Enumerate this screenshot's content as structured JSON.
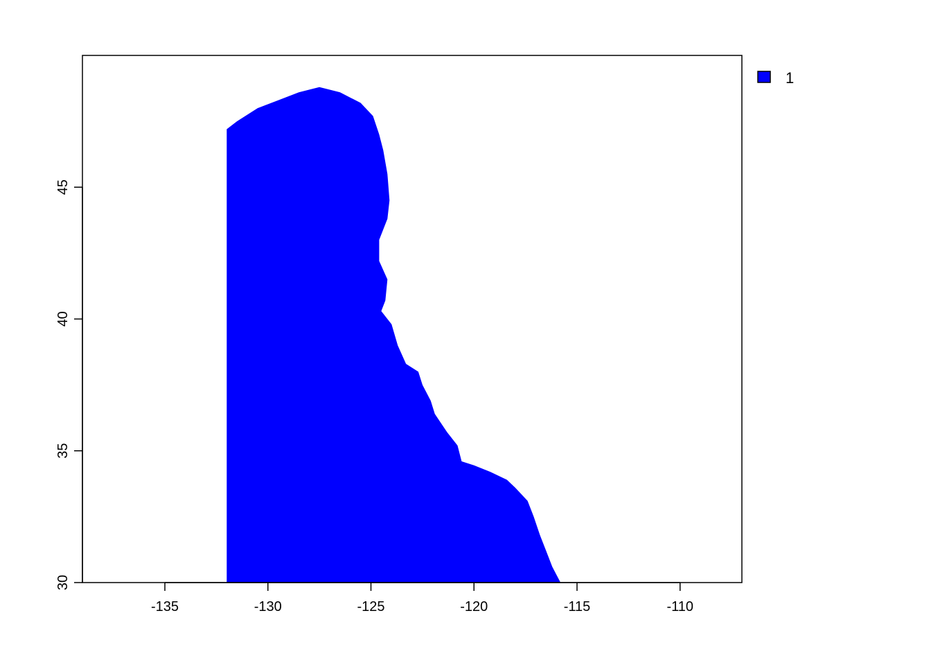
{
  "map": {
    "type": "raster",
    "x_range": [
      -139,
      -107
    ],
    "y_range": [
      30,
      50
    ],
    "fill_color": "#0000ff",
    "background": "#ffffff",
    "x_ticks": [
      -135,
      -130,
      -125,
      -120,
      -115,
      -110
    ],
    "x_tick_labels": [
      "-135",
      "-130",
      "-125",
      "-120",
      "-115",
      "-110"
    ],
    "y_ticks": [
      30,
      35,
      40,
      45
    ],
    "y_tick_labels": [
      "30",
      "35",
      "40",
      "45"
    ],
    "legend": [
      {
        "label": "1",
        "color": "#0000ff"
      }
    ],
    "raster_west_edge_lon": -132,
    "coastline": [
      [
        -132.0,
        47.2
      ],
      [
        -131.5,
        47.5
      ],
      [
        -130.5,
        48.0
      ],
      [
        -129.5,
        48.3
      ],
      [
        -128.5,
        48.6
      ],
      [
        -127.5,
        48.8
      ],
      [
        -126.5,
        48.6
      ],
      [
        -125.5,
        48.2
      ],
      [
        -124.9,
        47.7
      ],
      [
        -124.6,
        47.0
      ],
      [
        -124.4,
        46.4
      ],
      [
        -124.2,
        45.5
      ],
      [
        -124.1,
        44.5
      ],
      [
        -124.2,
        43.8
      ],
      [
        -124.6,
        43.0
      ],
      [
        -124.6,
        42.2
      ],
      [
        -124.2,
        41.5
      ],
      [
        -124.3,
        40.7
      ],
      [
        -124.5,
        40.3
      ],
      [
        -124.0,
        39.8
      ],
      [
        -123.7,
        39.0
      ],
      [
        -123.3,
        38.3
      ],
      [
        -122.7,
        38.0
      ],
      [
        -122.5,
        37.5
      ],
      [
        -122.1,
        36.9
      ],
      [
        -121.9,
        36.4
      ],
      [
        -121.3,
        35.7
      ],
      [
        -120.8,
        35.2
      ],
      [
        -120.6,
        34.6
      ],
      [
        -120.0,
        34.45
      ],
      [
        -119.2,
        34.2
      ],
      [
        -118.4,
        33.9
      ],
      [
        -118.0,
        33.6
      ],
      [
        -117.4,
        33.1
      ],
      [
        -117.1,
        32.5
      ],
      [
        -116.8,
        31.8
      ],
      [
        -116.5,
        31.2
      ],
      [
        -116.2,
        30.6
      ],
      [
        -115.8,
        30.0
      ]
    ]
  }
}
